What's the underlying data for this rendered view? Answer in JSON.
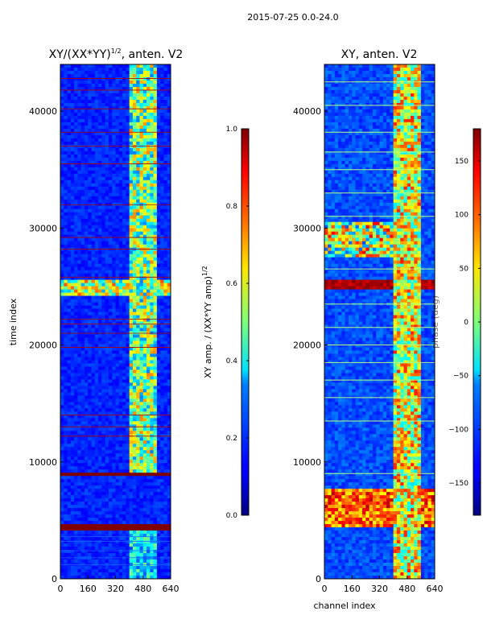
{
  "figure_title": "2015-07-25 0.0-24.0",
  "chart_data": [
    {
      "type": "heatmap",
      "id": "amp",
      "title": "XY/(XX*YY)",
      "title_sup": "1/2",
      "title_suffix": ", anten. V2",
      "xlabel": "",
      "ylabel": "time index",
      "xlim": [
        0,
        640
      ],
      "ylim": [
        0,
        44000
      ],
      "x_ticks": [
        0,
        160,
        320,
        480,
        640
      ],
      "y_ticks": [
        0,
        10000,
        20000,
        30000,
        40000
      ],
      "colorscale": "jet",
      "colorbar": {
        "label": "XY amp. / (XX*YY amp)",
        "label_sup": "1/2",
        "range": [
          0.0,
          1.0
        ],
        "ticks": [
          "0.0",
          "0.2",
          "0.4",
          "0.6",
          "0.8",
          "1.0"
        ],
        "tick_values": [
          0.0,
          0.2,
          0.4,
          0.6,
          0.8,
          1.0
        ]
      },
      "saturated_time_bands": [
        [
          4200,
          4600
        ],
        [
          8700,
          9100
        ]
      ],
      "bright_channel_band": [
        410,
        560
      ]
    },
    {
      "type": "heatmap",
      "id": "phase",
      "title": "XY, anten. V2",
      "xlabel": "channel index",
      "ylabel": "",
      "xlim": [
        0,
        640
      ],
      "ylim": [
        0,
        44000
      ],
      "x_ticks": [
        0,
        160,
        320,
        480,
        640
      ],
      "y_ticks": [
        0,
        10000,
        20000,
        30000,
        40000
      ],
      "colorscale": "jet",
      "colorbar": {
        "label": "phase (deg)",
        "range": [
          -180,
          180
        ],
        "ticks": [
          "−150",
          "−100",
          "−50",
          "0",
          "50",
          "100",
          "150"
        ],
        "tick_values": [
          -150,
          -100,
          -50,
          0,
          50,
          100,
          150
        ]
      },
      "bright_channel_band": [
        400,
        560
      ]
    }
  ]
}
